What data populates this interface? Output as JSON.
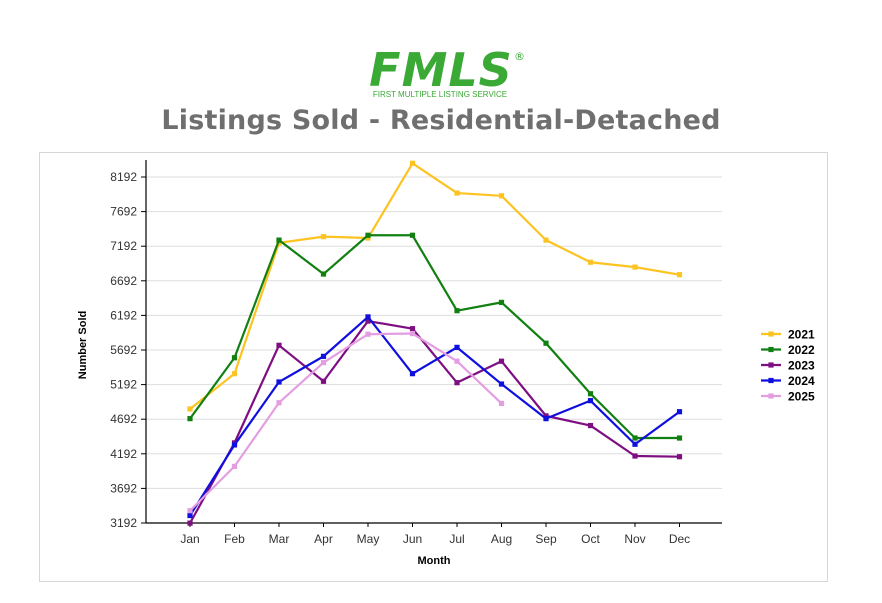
{
  "header": {
    "logo_text": "FMLS",
    "logo_mark": "®",
    "logo_subtitle": "FIRST MULTIPLE LISTING SERVICE",
    "logo_color": "#3aa935"
  },
  "chart_data": {
    "type": "line",
    "title": "Listings Sold - Residential-Detached",
    "xlabel": "Month",
    "ylabel": "Number Sold",
    "categories": [
      "Jan",
      "Feb",
      "Mar",
      "Apr",
      "May",
      "Jun",
      "Jul",
      "Aug",
      "Sep",
      "Oct",
      "Nov",
      "Dec"
    ],
    "y_ticks": [
      "3192",
      "3692",
      "4192",
      "4692",
      "5192",
      "5692",
      "6192",
      "6692",
      "7192",
      "7692",
      "8192"
    ],
    "ylim": [
      3192,
      8500
    ],
    "grid": true,
    "legend_position": "right",
    "series": [
      {
        "name": "2021",
        "color": "#fcc321",
        "values": [
          4840,
          5350,
          7240,
          7330,
          7310,
          8390,
          7960,
          7920,
          7280,
          6960,
          6890,
          6780
        ]
      },
      {
        "name": "2022",
        "color": "#118011",
        "values": [
          4700,
          5580,
          7280,
          6790,
          7350,
          7350,
          6260,
          6380,
          5790,
          5060,
          4420,
          4420
        ]
      },
      {
        "name": "2023",
        "color": "#7e0f82",
        "values": [
          3190,
          4350,
          5760,
          5240,
          6110,
          6000,
          5220,
          5530,
          4740,
          4600,
          4160,
          4150
        ]
      },
      {
        "name": "2024",
        "color": "#0f0fe0",
        "values": [
          3300,
          4320,
          5230,
          5600,
          6170,
          5350,
          5730,
          5200,
          4700,
          4960,
          4330,
          4800
        ]
      },
      {
        "name": "2025",
        "color": "#e39ee1",
        "values": [
          3370,
          4010,
          4930,
          5510,
          5920,
          5930,
          5530,
          4920,
          null,
          null,
          null,
          null
        ]
      }
    ]
  }
}
